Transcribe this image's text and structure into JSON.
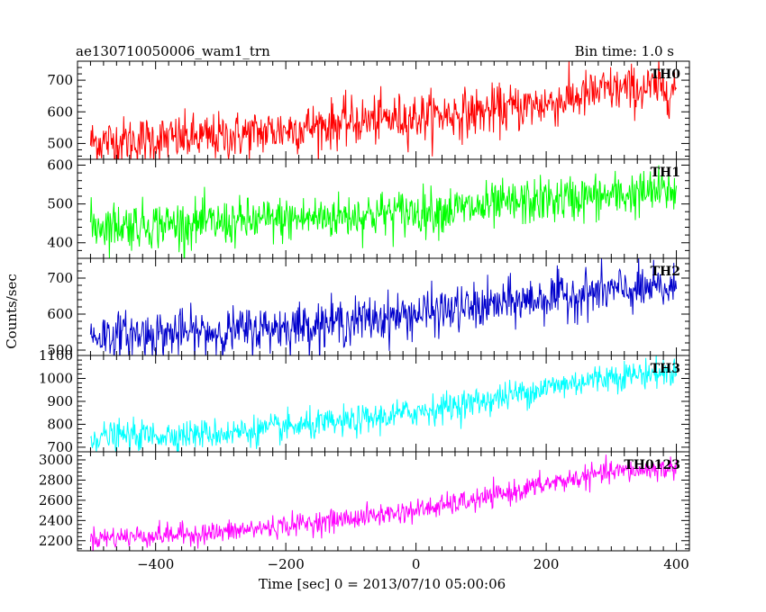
{
  "header": {
    "left_title": "ae130710050006_wam1_trn",
    "right_title": "Bin time: 1.0 s"
  },
  "chart_data": {
    "type": "line",
    "title": "ae130710050006_wam1_trn",
    "subtitle": "Bin time: 1.0 s",
    "xlabel": "Time [sec] 0 = 2013/07/10 05:00:06",
    "ylabel": "Counts/sec",
    "xlim": [
      -520,
      420
    ],
    "x_ticks": [
      -400,
      -200,
      0,
      200,
      400
    ],
    "x_tick_labels": [
      "−400",
      "−200",
      "0",
      "200",
      "400"
    ],
    "x_range": [
      -500,
      400
    ],
    "bin_time": 1.0,
    "grid": false,
    "panels": [
      {
        "name": "TH0",
        "color": "#ff0000",
        "ylim": [
          450,
          760
        ],
        "y_ticks": [
          500,
          600,
          700
        ],
        "y_tick_labels": [
          "500",
          "600",
          "700"
        ],
        "trend": [
          [
            -500,
            505
          ],
          [
            -300,
            520
          ],
          [
            -100,
            568
          ],
          [
            100,
            600
          ],
          [
            200,
            625
          ],
          [
            300,
            670
          ],
          [
            400,
            675
          ]
        ],
        "noise": 38
      },
      {
        "name": "TH1",
        "color": "#00ff00",
        "ylim": [
          360,
          615
        ],
        "y_ticks": [
          400,
          500,
          600
        ],
        "y_tick_labels": [
          "400",
          "500",
          "600"
        ],
        "trend": [
          [
            -500,
            445
          ],
          [
            -300,
            450
          ],
          [
            -100,
            470
          ],
          [
            100,
            490
          ],
          [
            200,
            510
          ],
          [
            300,
            520
          ],
          [
            400,
            535
          ]
        ],
        "noise": 30
      },
      {
        "name": "TH2",
        "color": "#0000cc",
        "ylim": [
          485,
          755
        ],
        "y_ticks": [
          500,
          600,
          700
        ],
        "y_tick_labels": [
          "500",
          "600",
          "700"
        ],
        "trend": [
          [
            -500,
            540
          ],
          [
            -300,
            550
          ],
          [
            -100,
            580
          ],
          [
            100,
            620
          ],
          [
            200,
            645
          ],
          [
            300,
            665
          ],
          [
            400,
            670
          ]
        ],
        "noise": 32
      },
      {
        "name": "TH3",
        "color": "#00ffff",
        "ylim": [
          680,
          1100
        ],
        "y_ticks": [
          700,
          800,
          900,
          1000,
          1100
        ],
        "y_tick_labels": [
          "700",
          "800",
          "900",
          "1000",
          "1100"
        ],
        "trend": [
          [
            -500,
            745
          ],
          [
            -300,
            760
          ],
          [
            -100,
            810
          ],
          [
            0,
            855
          ],
          [
            100,
            900
          ],
          [
            200,
            960
          ],
          [
            300,
            1010
          ],
          [
            400,
            1030
          ]
        ],
        "noise": 32
      },
      {
        "name": "TH0123",
        "color": "#ff00ff",
        "ylim": [
          2100,
          3080
        ],
        "y_ticks": [
          2200,
          2400,
          2600,
          2800,
          3000
        ],
        "y_tick_labels": [
          "2200",
          "2400",
          "2600",
          "2800",
          "3000"
        ],
        "trend": [
          [
            -500,
            2225
          ],
          [
            -300,
            2280
          ],
          [
            -100,
            2420
          ],
          [
            0,
            2500
          ],
          [
            100,
            2610
          ],
          [
            200,
            2760
          ],
          [
            300,
            2880
          ],
          [
            400,
            2920
          ]
        ],
        "noise": 55
      }
    ]
  }
}
